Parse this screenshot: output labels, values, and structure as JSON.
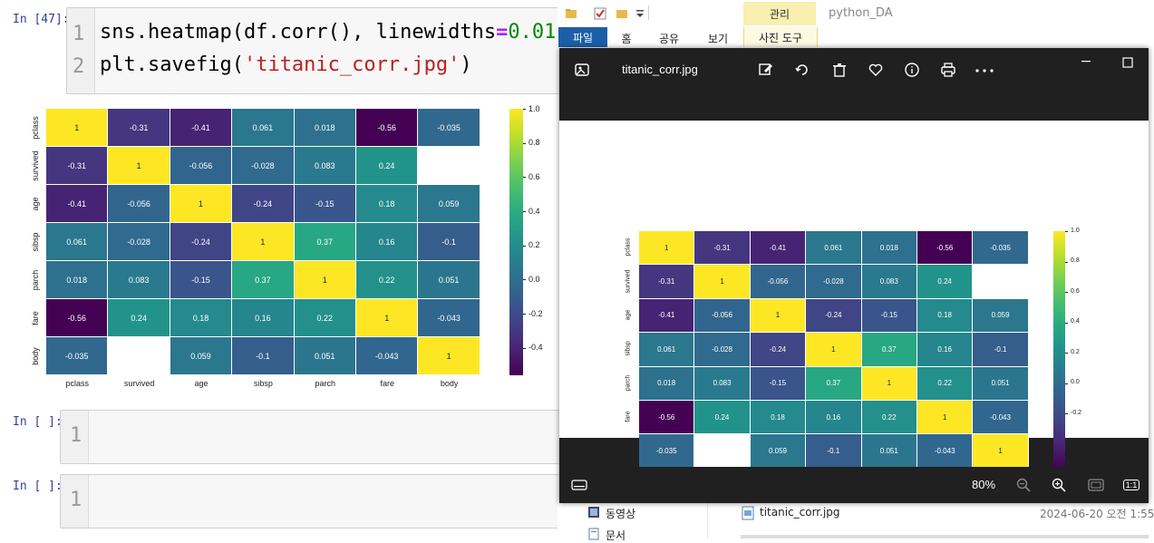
{
  "notebook": {
    "cells": [
      {
        "prompt": "In [47]:",
        "line_numbers": [
          "1",
          "2"
        ],
        "code_line1": {
          "a": "sns.heatmap(df.corr(), linewidths",
          "op": "=",
          "num": "0.01",
          "tail": ","
        },
        "code_line2": {
          "a": "plt.savefig(",
          "str": "'titanic_corr.jpg'",
          "tail": ")"
        }
      },
      {
        "prompt": "In [ ]:",
        "line_number": "1"
      },
      {
        "prompt": "In [ ]:",
        "line_number": "1"
      }
    ]
  },
  "heatmap": {
    "labels": [
      "pclass",
      "survived",
      "age",
      "sibsp",
      "parch",
      "fare",
      "body"
    ],
    "matrix": [
      [
        1,
        -0.31,
        -0.41,
        0.061,
        0.018,
        -0.56,
        -0.035
      ],
      [
        -0.31,
        1,
        -0.056,
        -0.028,
        0.083,
        0.24,
        null
      ],
      [
        -0.41,
        -0.056,
        1,
        -0.24,
        -0.15,
        0.18,
        0.059
      ],
      [
        0.061,
        -0.028,
        -0.24,
        1,
        0.37,
        0.16,
        -0.1
      ],
      [
        0.018,
        0.083,
        -0.15,
        0.37,
        1,
        0.22,
        0.051
      ],
      [
        -0.56,
        0.24,
        0.18,
        0.16,
        0.22,
        1,
        -0.043
      ],
      [
        -0.035,
        null,
        0.059,
        -0.1,
        0.051,
        -0.043,
        1
      ]
    ],
    "colorbar_ticks": [
      "1.0",
      "0.8",
      "0.6",
      "0.4",
      "0.2",
      "0.0",
      "-0.2",
      "-0.4"
    ],
    "colorbar_range": [
      -0.56,
      1.0
    ],
    "colormap": "viridis"
  },
  "chart_data": {
    "type": "heatmap",
    "x": [
      "pclass",
      "survived",
      "age",
      "sibsp",
      "parch",
      "fare",
      "body"
    ],
    "y": [
      "pclass",
      "survived",
      "age",
      "sibsp",
      "parch",
      "fare",
      "body"
    ],
    "values": [
      [
        1,
        -0.31,
        -0.41,
        0.061,
        0.018,
        -0.56,
        -0.035
      ],
      [
        -0.31,
        1,
        -0.056,
        -0.028,
        0.083,
        0.24,
        null
      ],
      [
        -0.41,
        -0.056,
        1,
        -0.24,
        -0.15,
        0.18,
        0.059
      ],
      [
        0.061,
        -0.028,
        -0.24,
        1,
        0.37,
        0.16,
        -0.1
      ],
      [
        0.018,
        0.083,
        -0.15,
        0.37,
        1,
        0.22,
        0.051
      ],
      [
        -0.56,
        0.24,
        0.18,
        0.16,
        0.22,
        1,
        -0.043
      ],
      [
        -0.035,
        null,
        0.059,
        -0.1,
        0.051,
        -0.043,
        1
      ]
    ],
    "colorbar_ticks": [
      1.0,
      0.8,
      0.6,
      0.4,
      0.2,
      0.0,
      -0.2,
      -0.4
    ],
    "annotations": true
  },
  "explorer": {
    "context_header": "관리",
    "window_title": "python_DA",
    "tabs": [
      "파일",
      "홈",
      "공유",
      "보기"
    ],
    "context_tab": "사진 도구",
    "nav_items": [
      "동영상",
      "문서"
    ],
    "file": {
      "name": "titanic_corr.jpg",
      "date": "2024-06-20 오전 1:55"
    }
  },
  "viewer": {
    "filename": "titanic_corr.jpg",
    "zoom": "80%",
    "icons": [
      "gallery-icon",
      "edit-icon",
      "rotate-icon",
      "delete-icon",
      "favorite-icon",
      "info-icon",
      "print-icon",
      "more-icon",
      "minimize-icon",
      "maximize-icon",
      "filmstrip-icon",
      "zoom-out-icon",
      "zoom-in-icon",
      "fit-icon",
      "actual-size-icon"
    ],
    "actual_size_label": "1:1"
  }
}
